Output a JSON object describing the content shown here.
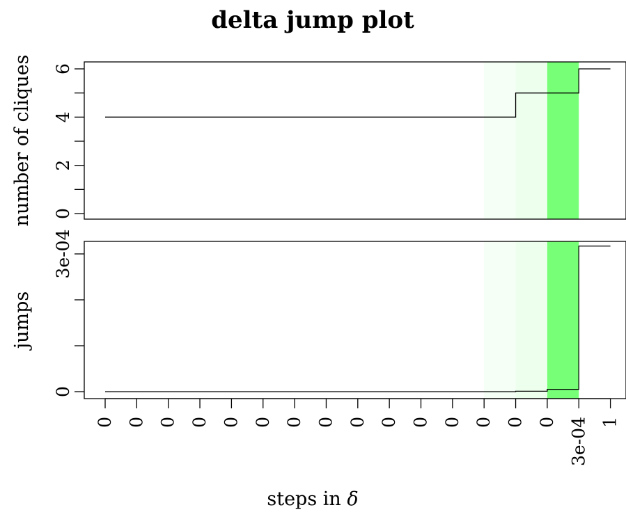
{
  "title": "delta jump plot",
  "xlabel_text": "steps in ",
  "xlabel_symbol": "δ",
  "highlight_colors": [
    "#f5fff5",
    "#edffed",
    "#77ff77"
  ],
  "chart_data": [
    {
      "type": "line",
      "step": true,
      "ylabel": "number of cliques",
      "ylim": [
        0,
        6
      ],
      "y_tick_values": [
        0,
        1,
        2,
        3,
        4,
        5,
        6
      ],
      "y_tick_labels": [
        "0",
        "",
        "2",
        "",
        "4",
        "",
        "6"
      ],
      "x_step": [
        0,
        1,
        2,
        3,
        4,
        5,
        6,
        7,
        8,
        9,
        10,
        11,
        12,
        13,
        14,
        15,
        16
      ],
      "values": [
        4,
        4,
        4,
        4,
        4,
        4,
        4,
        4,
        4,
        4,
        4,
        4,
        4,
        5,
        5,
        6,
        6
      ],
      "highlight_bands": [
        [
          12.0,
          13.0
        ],
        [
          13.0,
          14.0
        ],
        [
          14.0,
          15.0
        ]
      ]
    },
    {
      "type": "line",
      "step": true,
      "ylabel": "jumps",
      "ylim": [
        0,
        0.0003
      ],
      "y_tick_values": [
        0,
        0.0001,
        0.0002,
        0.0003
      ],
      "y_tick_labels": [
        "0",
        "",
        "",
        "3e-04"
      ],
      "x_step": [
        0,
        1,
        2,
        3,
        4,
        5,
        6,
        7,
        8,
        9,
        10,
        11,
        12,
        13,
        14,
        15,
        16
      ],
      "values": [
        0,
        0,
        0,
        0,
        0,
        0,
        0,
        0,
        0,
        0,
        0,
        0,
        0,
        1e-06,
        5e-06,
        0.000317,
        0.000317
      ],
      "x_tick_labels": [
        "0",
        "0",
        "0",
        "0",
        "0",
        "0",
        "0",
        "0",
        "0",
        "0",
        "0",
        "0",
        "0",
        "0",
        "0",
        "3e-04",
        "1"
      ],
      "highlight_bands": [
        [
          12.0,
          13.0
        ],
        [
          13.0,
          14.0
        ],
        [
          14.0,
          15.0
        ]
      ]
    }
  ]
}
